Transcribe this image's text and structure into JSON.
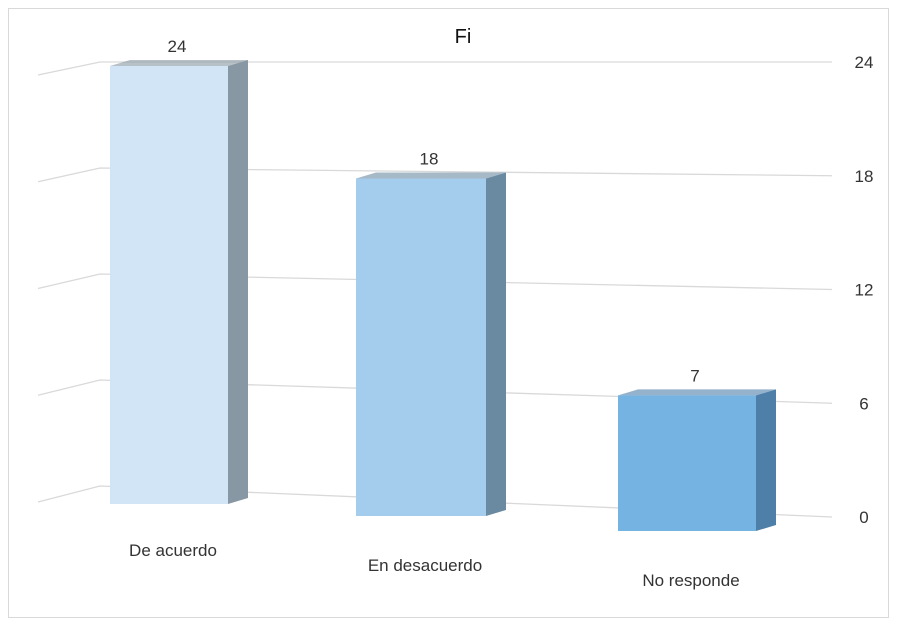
{
  "chart_data": {
    "type": "bar",
    "title": "Fi",
    "categories": [
      "De acuerdo",
      "En desacuerdo",
      "No responde"
    ],
    "values": [
      24,
      18,
      7
    ],
    "ylim": [
      0,
      24
    ],
    "yticks": [
      "0",
      "6",
      "12",
      "18",
      "24"
    ],
    "value_labels": [
      "24",
      "18",
      "7"
    ],
    "grid": true,
    "colors": {
      "front": [
        "#d2e5f6",
        "#a4ccec",
        "#75b3e3"
      ],
      "side": [
        "#8797a3",
        "#6a8aa2",
        "#4d7fa8"
      ],
      "grid": "#d9d9d9"
    }
  }
}
